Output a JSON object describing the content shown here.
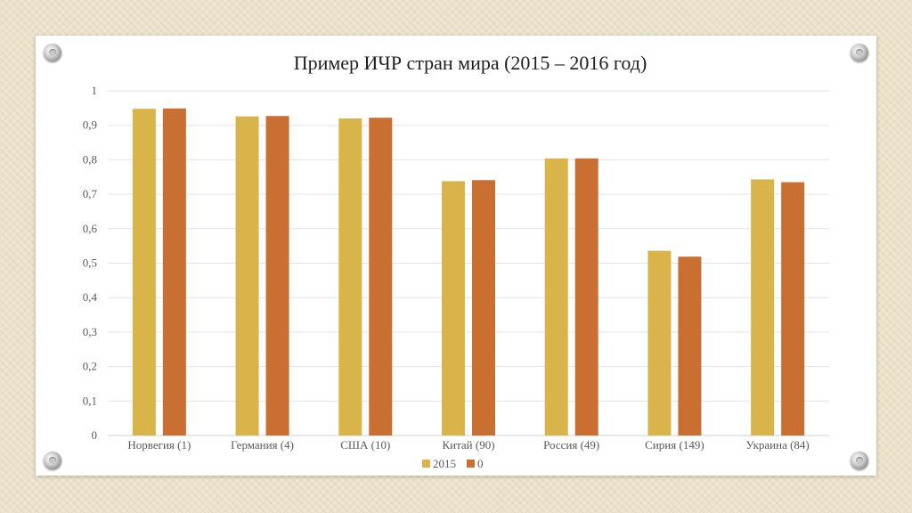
{
  "colors": {
    "series_2015": "#d9b44a",
    "series_0": "#c96f32",
    "grid": "#e3e3e3",
    "axis_text": "#595959",
    "title": "#1f1f1f"
  },
  "chart_data": {
    "type": "bar",
    "title": "Пример ИЧР стран мира (2015 – 2016 год)",
    "categories": [
      "Норвегия (1)",
      "Германия (4)",
      "США (10)",
      "Китай (90)",
      "Россия (49)",
      "Сирия (149)",
      "Украина (84)"
    ],
    "series": [
      {
        "name": "2015",
        "color": "#d9b44a",
        "values": [
          0.948,
          0.926,
          0.92,
          0.738,
          0.804,
          0.536,
          0.743
        ]
      },
      {
        "name": "0",
        "color": "#c96f32",
        "values": [
          0.949,
          0.927,
          0.922,
          0.741,
          0.804,
          0.519,
          0.735
        ]
      }
    ],
    "ylim": [
      0,
      1
    ],
    "yticks": [
      "0",
      "0,1",
      "0,2",
      "0,3",
      "0,4",
      "0,5",
      "0,6",
      "0,7",
      "0,8",
      "0,9",
      "1"
    ],
    "grid": true,
    "legend_position": "bottom"
  }
}
